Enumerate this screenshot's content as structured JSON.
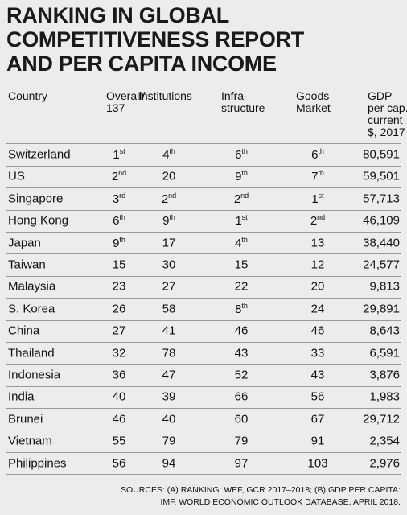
{
  "title": [
    "RANKING IN GLOBAL",
    "COMPETITIVENESS REPORT",
    "AND PER CAPITA INCOME"
  ],
  "table": {
    "headers": [
      [
        "Country"
      ],
      [
        "Overall/",
        "137"
      ],
      [
        "Institutions"
      ],
      [
        "Infra-",
        "structure"
      ],
      [
        "Goods",
        "Market"
      ],
      [
        "GDP",
        "per cap.",
        "current",
        "$, 2017"
      ]
    ],
    "rows": [
      [
        "Switzerland",
        {
          "n": "1",
          "sup": "st"
        },
        {
          "n": "4",
          "sup": "th"
        },
        {
          "n": "6",
          "sup": "th"
        },
        {
          "n": "6",
          "sup": "th"
        },
        "80,591"
      ],
      [
        "US",
        {
          "n": "2",
          "sup": "nd"
        },
        "20",
        {
          "n": "9",
          "sup": "th"
        },
        {
          "n": "7",
          "sup": "th"
        },
        "59,501"
      ],
      [
        "Singapore",
        {
          "n": "3",
          "sup": "rd"
        },
        {
          "n": "2",
          "sup": "nd"
        },
        {
          "n": "2",
          "sup": "nd"
        },
        {
          "n": "1",
          "sup": "st"
        },
        "57,713"
      ],
      [
        "Hong Kong",
        {
          "n": "6",
          "sup": "th"
        },
        {
          "n": "9",
          "sup": "th"
        },
        {
          "n": "1",
          "sup": "st"
        },
        {
          "n": "2",
          "sup": "nd"
        },
        "46,109"
      ],
      [
        "Japan",
        {
          "n": "9",
          "sup": "th"
        },
        "17",
        {
          "n": "4",
          "sup": "th"
        },
        "13",
        "38,440"
      ],
      [
        "Taiwan",
        "15",
        "30",
        "15",
        "12",
        "24,577"
      ],
      [
        "Malaysia",
        "23",
        "27",
        "22",
        "20",
        "9,813"
      ],
      [
        "S. Korea",
        "26",
        "58",
        {
          "n": "8",
          "sup": "th"
        },
        "24",
        "29,891"
      ],
      [
        "China",
        "27",
        "41",
        "46",
        "46",
        "8,643"
      ],
      [
        "Thailand",
        "32",
        "78",
        "43",
        "33",
        "6,591"
      ],
      [
        "Indonesia",
        "36",
        "47",
        "52",
        "43",
        "3,876"
      ],
      [
        "India",
        "40",
        "39",
        "66",
        "56",
        "1,983"
      ],
      [
        "Brunei",
        "46",
        "40",
        "60",
        "67",
        "29,712"
      ],
      [
        "Vietnam",
        "55",
        "79",
        "79",
        "91",
        "2,354"
      ],
      [
        "Philippines",
        "56",
        "94",
        "97",
        "103",
        "2,976"
      ]
    ]
  },
  "sources": [
    "SOURCES: (A) RANKING: WEF, GCR 2017–2018; (B) GDP PER CAPITA:",
    "IMF, WORLD ECONOMIC OUTLOOK DATABASE, APRIL 2018."
  ]
}
